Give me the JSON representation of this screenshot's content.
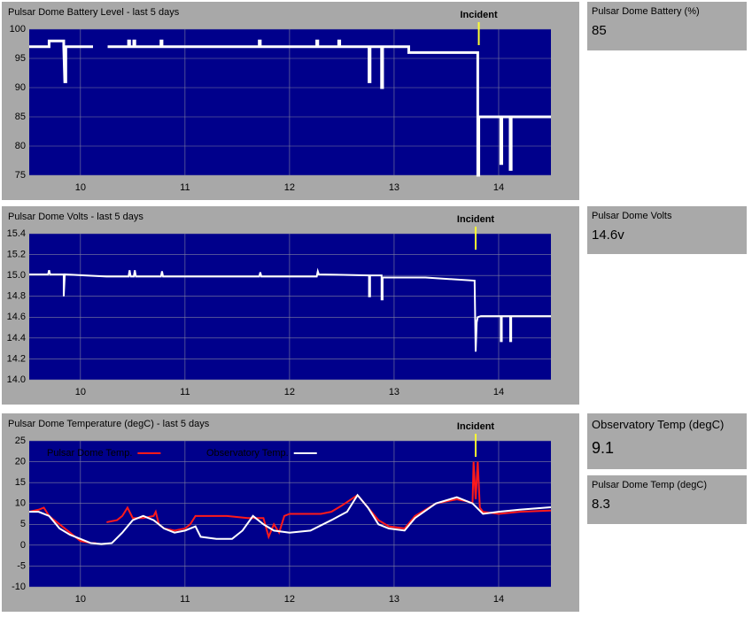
{
  "chart_data": [
    {
      "type": "line",
      "title": "Pulsar Dome Battery Level - last 5 days",
      "xlim": [
        9.51,
        14.5
      ],
      "xticks": [
        10,
        11,
        12,
        13,
        14
      ],
      "ylim": [
        75,
        100
      ],
      "yticks": [
        75,
        80,
        85,
        90,
        95,
        100
      ],
      "grid": true,
      "background": "#00008b",
      "annotations": [
        {
          "text": "Incident",
          "x": 13.81,
          "color": "#ffff33"
        }
      ],
      "series": [
        {
          "name": "Battery",
          "color": "#ffffff",
          "width": 3,
          "x": [
            9.51,
            9.7,
            9.7,
            9.84,
            9.84,
            9.85,
            9.86,
            9.86,
            10.12,
            null,
            10.26,
            10.46,
            10.46,
            10.47,
            10.47,
            10.51,
            10.51,
            10.52,
            10.52,
            10.77,
            10.77,
            10.78,
            10.78,
            11.71,
            11.71,
            11.72,
            11.72,
            12.26,
            12.26,
            12.27,
            12.27,
            12.47,
            12.47,
            12.48,
            12.48,
            12.76,
            12.76,
            12.77,
            12.77,
            12.88,
            12.88,
            12.89,
            12.89,
            13.14,
            13.14,
            13.8,
            13.8,
            13.81,
            13.81,
            14.02,
            14.02,
            14.03,
            14.03,
            14.11,
            14.11,
            14.12,
            14.12,
            14.5
          ],
          "values": [
            97,
            97,
            98,
            98,
            97,
            91,
            91,
            97,
            97,
            null,
            97,
            97,
            98,
            98,
            97,
            97,
            98,
            98,
            97,
            97,
            98,
            98,
            97,
            97,
            98,
            98,
            97,
            97,
            98,
            98,
            97,
            97,
            98,
            98,
            97,
            97,
            91,
            91,
            97,
            97,
            90,
            90,
            97,
            97,
            96,
            96,
            75,
            75,
            85,
            85,
            77,
            77,
            85,
            85,
            76,
            76,
            85,
            85
          ]
        }
      ]
    },
    {
      "type": "line",
      "title": "Pulsar Dome Volts - last 5 days",
      "xlim": [
        9.51,
        14.5
      ],
      "xticks": [
        10,
        11,
        12,
        13,
        14
      ],
      "ylim": [
        14.0,
        15.4
      ],
      "yticks": [
        {
          "value": 14,
          "label": "14.0"
        },
        {
          "value": 14.2,
          "label": "14.2"
        },
        {
          "value": 14.4,
          "label": "14.4"
        },
        {
          "value": 14.6,
          "label": "14.6"
        },
        {
          "value": 14.8,
          "label": "14.8"
        },
        {
          "value": 15,
          "label": "15.0"
        },
        {
          "value": 15.2,
          "label": "15.2"
        },
        {
          "value": 15.4,
          "label": "15.4"
        }
      ],
      "grid": true,
      "background": "#00008b",
      "annotations": [
        {
          "text": "Incident",
          "x": 13.78,
          "color": "#ffff33"
        }
      ],
      "series": [
        {
          "name": "Volts",
          "color": "#ffffff",
          "width": 2,
          "x": [
            9.51,
            9.69,
            9.7,
            9.71,
            9.84,
            9.84,
            9.85,
            10.25,
            10.46,
            10.47,
            10.48,
            10.51,
            10.52,
            10.53,
            10.77,
            10.78,
            10.79,
            11.71,
            11.72,
            11.73,
            12.26,
            12.27,
            12.28,
            12.76,
            12.76,
            12.77,
            12.77,
            12.88,
            12.88,
            12.89,
            12.89,
            13.3,
            13.77,
            13.78,
            13.79,
            13.8,
            13.83,
            14.02,
            14.02,
            14.03,
            14.03,
            14.11,
            14.11,
            14.12,
            14.12,
            14.5
          ],
          "values": [
            15.01,
            15.01,
            15.05,
            15.01,
            15.01,
            14.8,
            15.01,
            14.99,
            14.99,
            15.05,
            14.99,
            14.99,
            15.05,
            14.99,
            14.99,
            15.04,
            14.99,
            14.99,
            15.03,
            14.99,
            14.99,
            15.04,
            15.01,
            15.0,
            14.8,
            14.8,
            15.0,
            15.0,
            14.77,
            14.77,
            14.98,
            14.98,
            14.95,
            14.27,
            14.55,
            14.6,
            14.61,
            14.61,
            14.37,
            14.37,
            14.61,
            14.61,
            14.37,
            14.37,
            14.61,
            14.61
          ]
        }
      ]
    },
    {
      "type": "line",
      "title": "Pulsar Dome Temperature (degC) - last 5 days",
      "xlim": [
        9.51,
        14.5
      ],
      "xticks": [
        10,
        11,
        12,
        13,
        14
      ],
      "ylim": [
        -10,
        25
      ],
      "yticks": [
        -10,
        -5,
        0,
        5,
        10,
        15,
        20,
        25
      ],
      "grid": true,
      "background": "#00008b",
      "legend": "top-left",
      "annotations": [
        {
          "text": "Incident",
          "x": 13.78,
          "color": "#ffff33"
        }
      ],
      "series": [
        {
          "name": "Pulsar Dome Temp.",
          "color": "#ff1a1a",
          "width": 2,
          "x": [
            9.51,
            9.6,
            9.65,
            9.7,
            9.8,
            9.9,
            10.0,
            10.1,
            10.15,
            null,
            10.25,
            10.35,
            10.4,
            10.45,
            10.5,
            10.6,
            10.7,
            10.72,
            10.75,
            10.8,
            10.9,
            11.0,
            11.05,
            11.1,
            11.2,
            11.4,
            11.6,
            11.75,
            11.8,
            11.85,
            11.9,
            11.95,
            12.0,
            12.1,
            12.3,
            12.4,
            12.5,
            12.65,
            12.75,
            12.85,
            12.95,
            13.1,
            13.2,
            13.4,
            13.6,
            13.7,
            13.75,
            13.76,
            13.78,
            13.8,
            13.82,
            13.85,
            14.0,
            14.2,
            14.5
          ],
          "values": [
            8,
            8.5,
            9,
            7,
            5,
            3,
            1,
            0.5,
            0.5,
            null,
            5.5,
            6,
            7,
            9,
            6.5,
            6.5,
            7,
            8,
            5,
            4,
            3.5,
            4,
            5,
            7,
            7,
            7,
            6.5,
            6.5,
            2,
            5,
            3,
            7,
            7.5,
            7.5,
            7.5,
            8,
            9.5,
            12,
            9,
            6,
            4.5,
            4,
            7,
            10,
            11,
            10.5,
            10,
            20,
            11,
            20,
            9,
            8,
            7.5,
            8,
            8.3
          ]
        },
        {
          "name": "Observatory Temp.",
          "color": "#ffffff",
          "width": 2,
          "x": [
            9.51,
            9.6,
            9.7,
            9.8,
            9.9,
            10.0,
            10.1,
            10.2,
            10.3,
            10.4,
            10.5,
            10.6,
            10.7,
            10.8,
            10.9,
            11.0,
            11.1,
            11.15,
            11.3,
            11.45,
            11.55,
            11.65,
            11.75,
            11.85,
            12.0,
            12.2,
            12.4,
            12.55,
            12.65,
            12.75,
            12.85,
            12.95,
            13.1,
            13.2,
            13.4,
            13.6,
            13.75,
            13.85,
            14.0,
            14.2,
            14.5
          ],
          "values": [
            8,
            8,
            7,
            4,
            2.5,
            1.5,
            0.5,
            0.3,
            0.5,
            3,
            6,
            7,
            6,
            4,
            3,
            3.5,
            4.5,
            2,
            1.5,
            1.5,
            3.5,
            7,
            5,
            3.5,
            3,
            3.5,
            6,
            8,
            12,
            9,
            5,
            4,
            3.5,
            6.5,
            10,
            11.5,
            10,
            7.5,
            8,
            8.5,
            9.1
          ]
        }
      ]
    }
  ],
  "panels": [
    {
      "label": "Pulsar Dome Battery (%)",
      "value": "85"
    },
    {
      "label": "Pulsar Dome Volts",
      "value": "14.6v"
    },
    {
      "label": "Observatory Temp (degC)",
      "value": "9.1"
    },
    {
      "label": "Pulsar Dome Temp (degC)",
      "value": "8.3"
    }
  ]
}
